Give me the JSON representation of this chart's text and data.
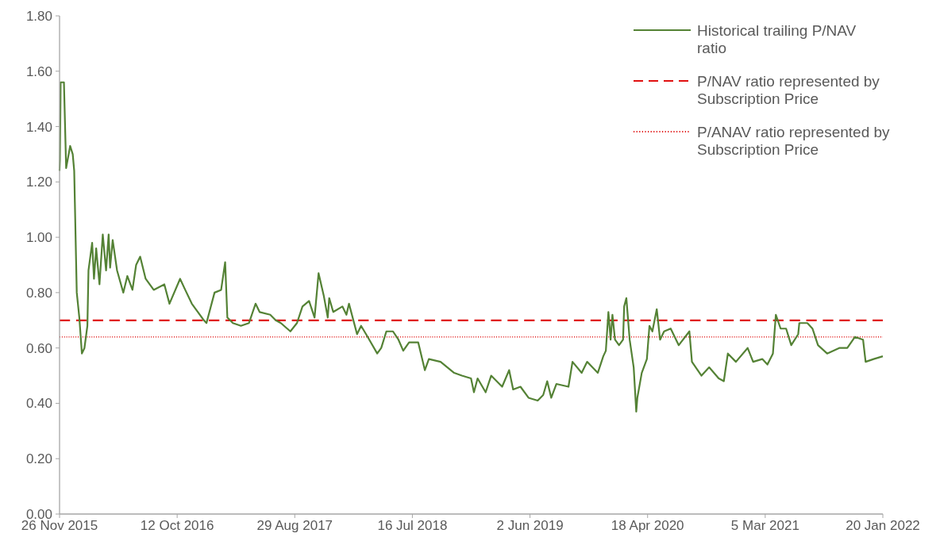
{
  "chart_data": {
    "type": "line",
    "x": [
      "2015-11-26",
      "2015-11-27",
      "2015-11-29",
      "2015-12-08",
      "2015-12-14",
      "2015-12-25",
      "2016-01-01",
      "2016-01-05",
      "2016-01-12",
      "2016-01-19",
      "2016-01-26",
      "2016-02-02",
      "2016-02-10",
      "2016-02-13",
      "2016-02-23",
      "2016-02-28",
      "2016-03-05",
      "2016-03-14",
      "2016-03-23",
      "2016-04-01",
      "2016-04-08",
      "2016-04-12",
      "2016-04-19",
      "2016-05-01",
      "2016-05-18",
      "2016-05-29",
      "2016-06-12",
      "2016-06-22",
      "2016-07-03",
      "2016-07-18",
      "2016-08-09",
      "2016-09-07",
      "2016-09-21",
      "2016-10-20",
      "2016-11-03",
      "2016-11-21",
      "2016-12-02",
      "2016-12-24",
      "2016-12-31",
      "2017-01-22",
      "2017-02-09",
      "2017-02-20",
      "2017-02-26",
      "2017-03-13",
      "2017-04-04",
      "2017-04-26",
      "2017-05-14",
      "2017-05-25",
      "2017-06-23",
      "2017-07-08",
      "2017-07-22",
      "2017-08-17",
      "2017-09-04",
      "2017-09-19",
      "2017-10-07",
      "2017-10-22",
      "2017-11-02",
      "2017-11-16",
      "2017-11-27",
      "2017-12-01",
      "2017-12-12",
      "2018-01-06",
      "2018-01-17",
      "2018-01-24",
      "2018-02-15",
      "2018-02-26",
      "2018-03-16",
      "2018-04-11",
      "2018-04-22",
      "2018-05-06",
      "2018-05-24",
      "2018-06-08",
      "2018-06-21",
      "2018-07-07",
      "2018-08-01",
      "2018-08-19",
      "2018-08-30",
      "2018-10-01",
      "2018-11-07",
      "2018-11-28",
      "2018-12-23",
      "2018-12-31",
      "2019-01-10",
      "2019-02-01",
      "2019-02-16",
      "2019-03-18",
      "2019-04-06",
      "2019-04-17",
      "2019-05-07",
      "2019-05-29",
      "2019-06-23",
      "2019-07-08",
      "2019-07-19",
      "2019-07-30",
      "2019-08-13",
      "2019-09-15",
      "2019-09-26",
      "2019-10-21",
      "2019-11-05",
      "2019-12-04",
      "2019-12-19",
      "2019-12-26",
      "2020-01-02",
      "2020-01-08",
      "2020-01-13",
      "2020-01-20",
      "2020-01-31",
      "2020-02-11",
      "2020-02-14",
      "2020-02-20",
      "2020-02-29",
      "2020-03-11",
      "2020-03-18",
      "2020-03-21",
      "2020-04-02",
      "2020-04-16",
      "2020-04-23",
      "2020-05-01",
      "2020-05-13",
      "2020-05-22",
      "2020-06-02",
      "2020-06-20",
      "2020-07-12",
      "2020-08-10",
      "2020-08-17",
      "2020-09-12",
      "2020-10-03",
      "2020-10-29",
      "2020-11-12",
      "2020-11-23",
      "2020-12-15",
      "2021-01-16",
      "2021-01-31",
      "2021-02-25",
      "2021-03-11",
      "2021-03-26",
      "2021-04-03",
      "2021-04-16",
      "2021-05-01",
      "2021-05-15",
      "2021-06-03",
      "2021-06-06",
      "2021-06-28",
      "2021-07-12",
      "2021-07-27",
      "2021-08-21",
      "2021-09-23",
      "2021-10-15",
      "2021-11-05",
      "2021-11-27",
      "2021-12-04",
      "2021-12-26",
      "2022-01-20"
    ],
    "series": [
      {
        "name": "Historical trailing P/NAV ratio",
        "color": "#548235",
        "values": [
          1.24,
          1.28,
          1.56,
          1.56,
          1.25,
          1.33,
          1.3,
          1.24,
          0.8,
          0.71,
          0.58,
          0.6,
          0.68,
          0.88,
          0.98,
          0.85,
          0.96,
          0.83,
          1.01,
          0.88,
          1.01,
          0.89,
          0.99,
          0.88,
          0.8,
          0.86,
          0.81,
          0.9,
          0.93,
          0.85,
          0.81,
          0.83,
          0.76,
          0.85,
          0.81,
          0.76,
          0.74,
          0.7,
          0.69,
          0.8,
          0.81,
          0.91,
          0.71,
          0.69,
          0.68,
          0.69,
          0.76,
          0.73,
          0.72,
          0.7,
          0.69,
          0.66,
          0.69,
          0.75,
          0.77,
          0.71,
          0.87,
          0.79,
          0.71,
          0.78,
          0.73,
          0.75,
          0.72,
          0.76,
          0.65,
          0.68,
          0.64,
          0.58,
          0.6,
          0.66,
          0.66,
          0.63,
          0.59,
          0.62,
          0.62,
          0.52,
          0.56,
          0.55,
          0.51,
          0.5,
          0.49,
          0.44,
          0.49,
          0.44,
          0.5,
          0.46,
          0.52,
          0.45,
          0.46,
          0.42,
          0.41,
          0.43,
          0.48,
          0.42,
          0.47,
          0.46,
          0.55,
          0.51,
          0.55,
          0.51,
          0.57,
          0.59,
          0.73,
          0.63,
          0.72,
          0.63,
          0.61,
          0.63,
          0.75,
          0.78,
          0.63,
          0.53,
          0.37,
          0.42,
          0.51,
          0.56,
          0.68,
          0.66,
          0.74,
          0.63,
          0.66,
          0.67,
          0.61,
          0.66,
          0.55,
          0.5,
          0.53,
          0.49,
          0.48,
          0.58,
          0.55,
          0.6,
          0.55,
          0.56,
          0.54,
          0.58,
          0.72,
          0.67,
          0.67,
          0.61,
          0.65,
          0.69,
          0.69,
          0.67,
          0.61,
          0.58,
          0.6,
          0.6,
          0.64,
          0.63,
          0.55,
          0.56,
          0.57
        ]
      }
    ],
    "xlim": [
      "2015-11-26",
      "2022-01-20"
    ],
    "xticks": [
      {
        "value": "2015-11-26",
        "label": "26 Nov 2015"
      },
      {
        "value": "2016-10-12",
        "label": "12 Oct 2016"
      },
      {
        "value": "2017-08-29",
        "label": "29 Aug 2017"
      },
      {
        "value": "2018-07-16",
        "label": "16 Jul 2018"
      },
      {
        "value": "2019-06-02",
        "label": "2 Jun 2019"
      },
      {
        "value": "2020-04-18",
        "label": "18 Apr 2020"
      },
      {
        "value": "2021-03-05",
        "label": "5 Mar 2021"
      },
      {
        "value": "2022-01-20",
        "label": "20 Jan 2022"
      }
    ],
    "ylim": [
      0,
      1.8
    ],
    "yticks": [
      {
        "value": 0,
        "label": "0.00"
      },
      {
        "value": 0.2,
        "label": "0.20"
      },
      {
        "value": 0.4,
        "label": "0.40"
      },
      {
        "value": 0.6,
        "label": "0.60"
      },
      {
        "value": 0.8,
        "label": "0.80"
      },
      {
        "value": 1,
        "label": "1.00"
      },
      {
        "value": 1.2,
        "label": "1.20"
      },
      {
        "value": 1.4,
        "label": "1.40"
      },
      {
        "value": 1.6,
        "label": "1.60"
      },
      {
        "value": 1.8,
        "label": "1.80"
      }
    ],
    "ref_lines": [
      {
        "axis": "y",
        "value": 0.7,
        "label": "P/NAV ratio represented by Subscription Price",
        "color": "#e01010",
        "line_style": "dashed"
      },
      {
        "axis": "y",
        "value": 0.64,
        "label": "P/ANAV ratio represented by Subscription Price",
        "color": "#e01010",
        "line_style": "dotted"
      }
    ],
    "legend": "top right",
    "line_style": "solid"
  }
}
